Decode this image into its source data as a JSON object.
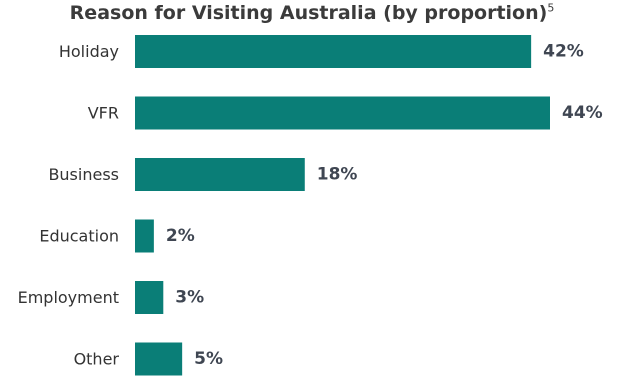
{
  "chart_data": {
    "type": "bar",
    "orientation": "horizontal",
    "title": "Reason for Visiting Australia (by proportion)",
    "title_footnote": "5",
    "categories": [
      "Holiday",
      "VFR",
      "Business",
      "Education",
      "Employment",
      "Other"
    ],
    "values": [
      42,
      44,
      18,
      2,
      3,
      5
    ],
    "value_labels": [
      "42%",
      "44%",
      "18%",
      "2%",
      "3%",
      "5%"
    ],
    "unit": "%",
    "xlim": [
      0,
      44
    ],
    "grid": false,
    "legend": "none",
    "bar_color": "#0a7e77"
  }
}
